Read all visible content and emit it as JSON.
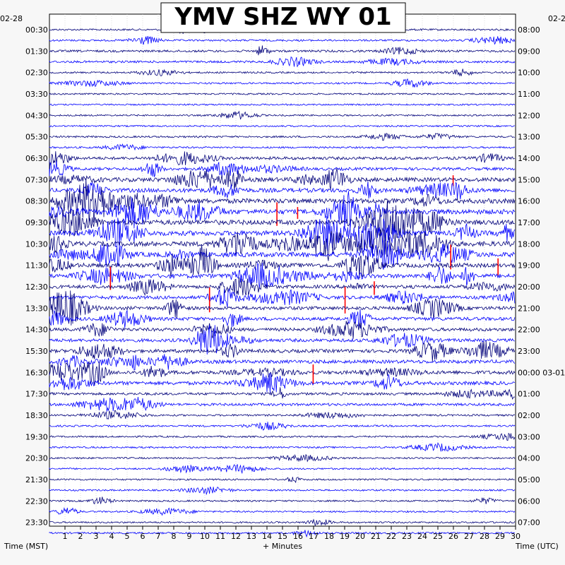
{
  "chart_data": {
    "type": "line",
    "title": "YMV SHZ WY 01",
    "left_date": "02-28",
    "right_date_start": "02-2",
    "right_date_next": "03-01",
    "xlabel_left": "Time (MST)",
    "xlabel_center": "+ Minutes",
    "xlabel_right": "Time (UTC)",
    "xlim": [
      0,
      30
    ],
    "x_ticks": [
      "1",
      "2",
      "3",
      "4",
      "5",
      "6",
      "7",
      "8",
      "9",
      "10",
      "11",
      "12",
      "13",
      "14",
      "15",
      "16",
      "17",
      "18",
      "19",
      "20",
      "21",
      "22",
      "23",
      "24",
      "25",
      "26",
      "27",
      "28",
      "29",
      "30"
    ],
    "left_times": [
      "00:30",
      "01:30",
      "02:30",
      "03:30",
      "04:30",
      "05:30",
      "06:30",
      "07:30",
      "08:30",
      "09:30",
      "10:30",
      "11:30",
      "12:30",
      "13:30",
      "14:30",
      "15:30",
      "16:30",
      "17:30",
      "18:30",
      "19:30",
      "20:30",
      "21:30",
      "22:30",
      "23:30"
    ],
    "right_times": [
      "08:00",
      "09:00",
      "10:00",
      "11:00",
      "12:00",
      "13:00",
      "14:00",
      "15:00",
      "16:00",
      "17:00",
      "18:00",
      "19:00",
      "20:00",
      "21:00",
      "22:00",
      "23:00",
      "00:00",
      "01:00",
      "02:00",
      "03:00",
      "04:00",
      "05:00",
      "06:00",
      "07:00"
    ],
    "traces_per_hour": 2,
    "trace_colors": [
      "#00007a",
      "#0000ff"
    ],
    "clip_color": "#ff0000",
    "activity_by_hour": [
      0.15,
      0.25,
      0.12,
      0.08,
      0.08,
      0.15,
      0.45,
      0.8,
      1.0,
      1.0,
      1.0,
      0.85,
      0.6,
      0.6,
      0.55,
      0.6,
      0.65,
      0.35,
      0.15,
      0.12,
      0.1,
      0.1,
      0.1,
      0.1
    ]
  }
}
